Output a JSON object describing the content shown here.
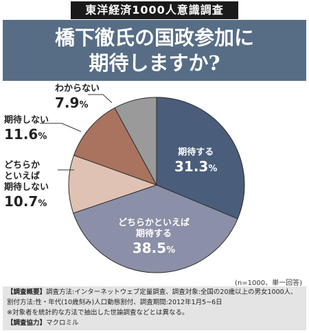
{
  "header": {
    "tag": "東洋経済1000人意識調査",
    "title_line1": "橋下徹氏の国政参加に",
    "title_line2": "期待しますか?"
  },
  "chart_data": {
    "type": "pie",
    "title": "橋下徹氏の国政参加に期待しますか?",
    "unit": "%",
    "slices": [
      {
        "label": "期待する",
        "value": 31.3,
        "color": "#4a5d7a"
      },
      {
        "label": "どちらかといえば期待する",
        "value": 38.5,
        "color": "#8b8fa7"
      },
      {
        "label": "どちらかといえば期待しない",
        "value": 10.7,
        "color": "#dfc2b4"
      },
      {
        "label": "期待しない",
        "value": 11.6,
        "color": "#a9735f"
      },
      {
        "label": "わからない",
        "value": 7.9,
        "color": "#9a9a9a"
      }
    ],
    "labels": [
      {
        "lines": [
          "期待する"
        ],
        "pct": "31.3"
      },
      {
        "lines": [
          "どちらかといえば",
          "期待する"
        ],
        "pct": "38.5"
      },
      {
        "lines": [
          "どちらか",
          "といえば",
          "期待しない"
        ],
        "pct": "10.7"
      },
      {
        "lines": [
          "期待しない"
        ],
        "pct": "11.6"
      },
      {
        "lines": [
          "わからない"
        ],
        "pct": "7.9"
      }
    ]
  },
  "note": "(n=1000、単一回答)",
  "footer": {
    "overview_tag": "【調査概要】",
    "overview_text": "調査方法:インターネットウェブ定量調査、調査対象:全国の20歳以上の男女1000人、割付方法:性・年代(10歳刻み)人口動態割付、調査期間:2012年1月5~6日",
    "caveat": "※対象者を統計的な方法で抽出した世論調査などとは異なる。",
    "coop_tag": "【調査協力】",
    "coop_text": "マクロミル"
  }
}
